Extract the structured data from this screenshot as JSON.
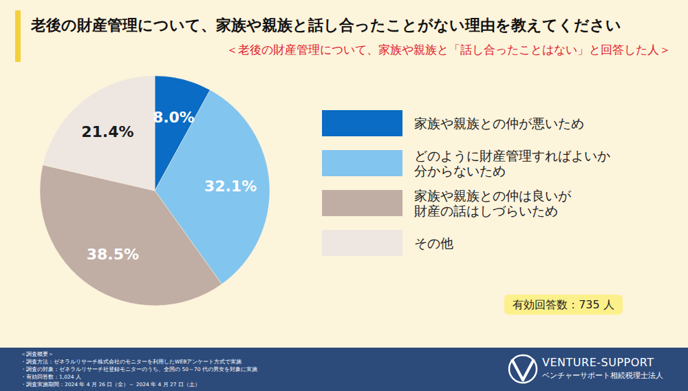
{
  "chart_data": {
    "type": "pie",
    "title": "老後の財産管理について、家族や親族と話し合ったことがない理由を教えてください",
    "subtitle": "＜老後の財産管理について、家族や親族と「話し合ったことはない」と回答した人＞",
    "categories": [
      "家族や親族との仲が悪いため",
      "どのように財産管理すればよいか\n分からないため",
      "家族や親族との仲は良いが\n財産の話はしづらいため",
      "その他"
    ],
    "values": [
      8.0,
      32.1,
      38.5,
      21.4
    ],
    "value_labels": [
      "8.0%",
      "32.1%",
      "38.5%",
      "21.4%"
    ],
    "colors": [
      "#0a6cc4",
      "#82c5ef",
      "#c0ada4",
      "#ede6e1"
    ],
    "data_labels": true,
    "legend": "right",
    "annotation": "有効回答数：735 人"
  },
  "footer": {
    "notes": [
      "＜調査概要＞",
      "・調査方法：ゼネラルリサーチ株式会社のモニターを利用したWEBアンケート方式で実施",
      "・調査の対象：ゼネラルリサーチ社登録モニターのうち、全国の 50～70 代の男女を対象に実施",
      "・有効回答数：1,024 人",
      "・調査実施期間：2024 年 4 月 26 日（金）～ 2024 年 4 月 27 日（土）"
    ],
    "brand": "VENTURE-SUPPORT",
    "brand_sub": "ベンチャーサポート相続税理士法人"
  }
}
